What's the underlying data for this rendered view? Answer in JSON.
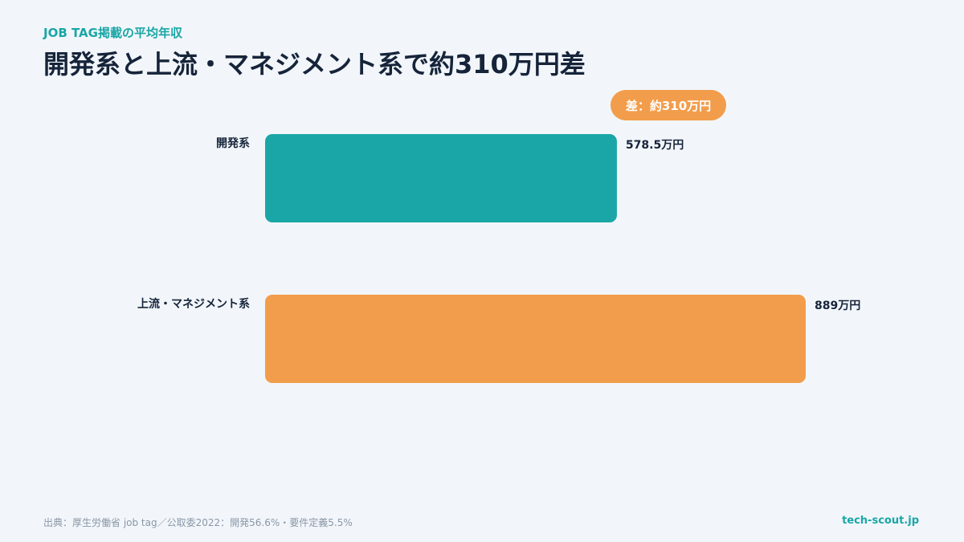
{
  "header": {
    "eyebrow": "JOB TAG掲載の平均年収",
    "title": "開発系と上流・マネジメント系で約310万円差"
  },
  "badge": {
    "label": "差：約310万円",
    "color": "#f29d4b"
  },
  "chart_data": {
    "type": "bar",
    "orientation": "horizontal",
    "categories": [
      "開発系",
      "上流・マネジメント系"
    ],
    "values": [
      578.5,
      889
    ],
    "value_labels": [
      "578.5万円",
      "889万円"
    ],
    "colors": [
      "#1aa6a6",
      "#f29d4b"
    ],
    "unit": "万円",
    "xlim": [
      0,
      1000
    ],
    "grid": false,
    "legend": "none"
  },
  "footer": {
    "source": "出典：厚生労働省 job tag／公取委2022：開発56.6%・要件定義5.5%",
    "brand": "tech-scout.jp"
  }
}
